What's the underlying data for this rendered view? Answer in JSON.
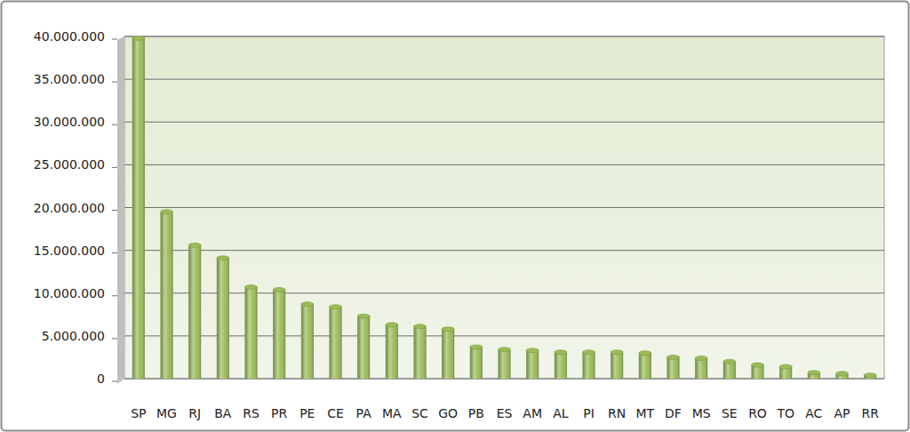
{
  "chart_data": {
    "type": "bar",
    "categories": [
      "SP",
      "MG",
      "RJ",
      "BA",
      "RS",
      "PR",
      "PE",
      "CE",
      "PA",
      "MA",
      "SC",
      "GO",
      "PB",
      "ES",
      "AM",
      "AL",
      "PI",
      "RN",
      "MT",
      "DF",
      "MS",
      "SE",
      "RO",
      "TO",
      "AC",
      "AP",
      "RR"
    ],
    "values": [
      39800000,
      19500000,
      15600000,
      14100000,
      10700000,
      10400000,
      8700000,
      8400000,
      7300000,
      6300000,
      6100000,
      5800000,
      3700000,
      3400000,
      3300000,
      3100000,
      3100000,
      3100000,
      3000000,
      2500000,
      2400000,
      2000000,
      1600000,
      1400000,
      700000,
      600000,
      400000
    ],
    "color": "#9bbb59",
    "ylim": [
      0,
      40000000
    ],
    "yticks": [
      0,
      {
        "value": 5000000,
        "label": "5.000.000"
      },
      {
        "value": 10000000,
        "label": "10.000.000"
      },
      {
        "value": 15000000,
        "label": "15.000.000"
      },
      {
        "value": 20000000,
        "label": "20.000.000"
      },
      {
        "value": 25000000,
        "label": "25.000.000"
      },
      {
        "value": 30000000,
        "label": "30.000.000"
      },
      {
        "value": 35000000,
        "label": "35.000.000"
      },
      {
        "value": 40000000,
        "label": "40.000.000"
      }
    ],
    "grid": true
  }
}
